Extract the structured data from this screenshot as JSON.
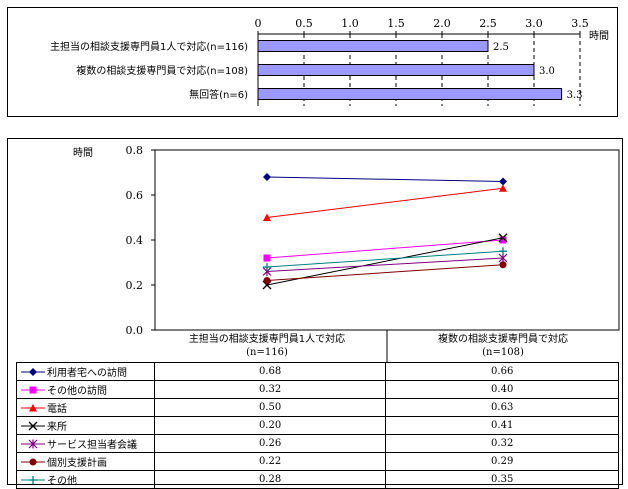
{
  "chart_data": [
    {
      "type": "bar",
      "orientation": "horizontal",
      "categories": [
        "主担当の相談支援専門員1人で対応(n=116)",
        "複数の相談支援専門員で対応(n=108)",
        "無回答(n=6)"
      ],
      "values": [
        2.5,
        3.0,
        3.3
      ],
      "data_labels": [
        "2.5",
        "3.0",
        "3.3"
      ],
      "xlabel": "時間",
      "xlim": [
        0,
        3.5
      ],
      "xticks": [
        "0",
        "0.5",
        "1.0",
        "1.5",
        "2.0",
        "2.5",
        "3.0",
        "3.5"
      ],
      "grid": "dashed vertical",
      "bar_color": "#9999ff"
    },
    {
      "type": "line",
      "ylabel": "時間",
      "ylim": [
        0.0,
        0.8
      ],
      "yticks": [
        "0.0",
        "0.2",
        "0.4",
        "0.6",
        "0.8"
      ],
      "categories": [
        {
          "line1": "主担当の相談支援専門員1人で対応",
          "line2": "(n=116)"
        },
        {
          "line1": "複数の相談支援専門員で対応",
          "line2": "(n=108)"
        }
      ],
      "series": [
        {
          "name": "利用者宅への訪問",
          "values": [
            0.68,
            0.66
          ],
          "labels": [
            "0.68",
            "0.66"
          ],
          "color": "#000080",
          "marker": "diamond"
        },
        {
          "name": "その他の訪問",
          "values": [
            0.32,
            0.4
          ],
          "labels": [
            "0.32",
            "0.40"
          ],
          "color": "#ff00ff",
          "marker": "square"
        },
        {
          "name": "電話",
          "values": [
            0.5,
            0.63
          ],
          "labels": [
            "0.50",
            "0.63"
          ],
          "color": "#ff0000",
          "marker": "triangle"
        },
        {
          "name": "来所",
          "values": [
            0.2,
            0.41
          ],
          "labels": [
            "0.20",
            "0.41"
          ],
          "color": "#000000",
          "marker": "x"
        },
        {
          "name": "サービス担当者会議",
          "values": [
            0.26,
            0.32
          ],
          "labels": [
            "0.26",
            "0.32"
          ],
          "color": "#800080",
          "marker": "star"
        },
        {
          "name": "個別支援計画",
          "values": [
            0.22,
            0.29
          ],
          "labels": [
            "0.22",
            "0.29"
          ],
          "color": "#800000",
          "marker": "circle"
        },
        {
          "name": "その他",
          "values": [
            0.28,
            0.35
          ],
          "labels": [
            "0.28",
            "0.35"
          ],
          "color": "#008080",
          "marker": "plus"
        }
      ],
      "legend_placement": "table-below"
    }
  ]
}
